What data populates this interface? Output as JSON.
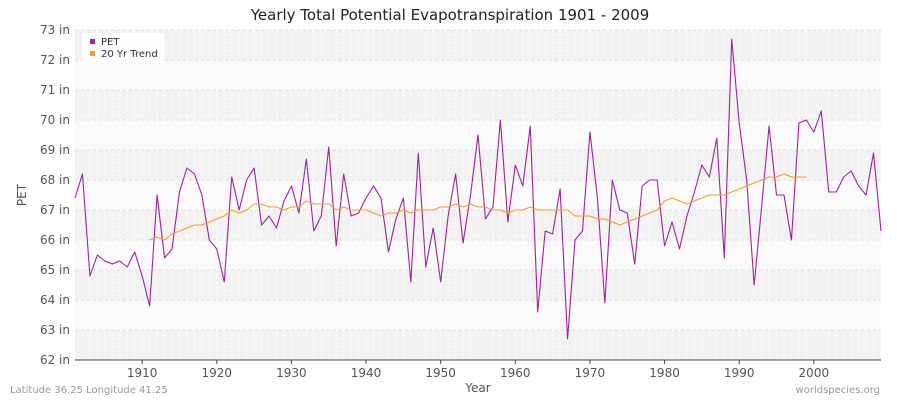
{
  "chart_data": {
    "type": "line",
    "title": "Yearly Total Potential Evapotranspiration 1901 - 2009",
    "xlabel": "Year",
    "ylabel": "PET",
    "xlim": [
      1901,
      2009
    ],
    "ylim": [
      62,
      73
    ],
    "y_ticks": [
      "62 in",
      "63 in",
      "64 in",
      "65 in",
      "66 in",
      "67 in",
      "68 in",
      "69 in",
      "70 in",
      "71 in",
      "72 in",
      "73 in"
    ],
    "x_ticks": [
      "1910",
      "1920",
      "1930",
      "1940",
      "1950",
      "1960",
      "1970",
      "1980",
      "1990",
      "2000"
    ],
    "grid": true,
    "legend_position": "top-left",
    "series": [
      {
        "name": "PET",
        "color": "#a020a0",
        "x": [
          1901,
          1902,
          1903,
          1904,
          1905,
          1906,
          1907,
          1908,
          1909,
          1910,
          1911,
          1912,
          1913,
          1914,
          1915,
          1916,
          1917,
          1918,
          1919,
          1920,
          1921,
          1922,
          1923,
          1924,
          1925,
          1926,
          1927,
          1928,
          1929,
          1930,
          1931,
          1932,
          1933,
          1934,
          1935,
          1936,
          1937,
          1938,
          1939,
          1940,
          1941,
          1942,
          1943,
          1944,
          1945,
          1946,
          1947,
          1948,
          1949,
          1950,
          1951,
          1952,
          1953,
          1954,
          1955,
          1956,
          1957,
          1958,
          1959,
          1960,
          1961,
          1962,
          1963,
          1964,
          1965,
          1966,
          1967,
          1968,
          1969,
          1970,
          1971,
          1972,
          1973,
          1974,
          1975,
          1976,
          1977,
          1978,
          1979,
          1980,
          1981,
          1982,
          1983,
          1984,
          1985,
          1986,
          1987,
          1988,
          1989,
          1990,
          1991,
          1992,
          1993,
          1994,
          1995,
          1996,
          1997,
          1998,
          1999,
          2000,
          2001,
          2002,
          2003,
          2004,
          2005,
          2006,
          2007,
          2008,
          2009
        ],
        "values": [
          67.4,
          68.2,
          64.8,
          65.5,
          65.3,
          65.2,
          65.3,
          65.1,
          65.6,
          64.8,
          63.8,
          67.5,
          65.4,
          65.7,
          67.6,
          68.4,
          68.2,
          67.5,
          66.0,
          65.7,
          64.6,
          68.1,
          67.0,
          68.0,
          68.4,
          66.5,
          66.8,
          66.4,
          67.3,
          67.8,
          66.9,
          68.7,
          66.3,
          66.8,
          69.1,
          65.8,
          68.2,
          66.8,
          66.9,
          67.4,
          67.8,
          67.4,
          65.6,
          66.7,
          67.4,
          64.6,
          68.9,
          65.1,
          66.4,
          64.6,
          66.8,
          68.2,
          65.9,
          67.5,
          69.5,
          66.7,
          67.1,
          70.0,
          66.6,
          68.5,
          67.8,
          69.8,
          63.6,
          66.3,
          66.2,
          67.7,
          62.7,
          66.0,
          66.3,
          69.6,
          67.4,
          63.9,
          68.0,
          67.0,
          66.9,
          65.2,
          67.8,
          68.0,
          68.0,
          65.8,
          66.6,
          65.7,
          66.8,
          67.6,
          68.5,
          68.1,
          69.4,
          65.4,
          72.7,
          69.9,
          68.0,
          64.5,
          67.1,
          69.8,
          67.5,
          67.5,
          66.0,
          69.9,
          70.0,
          69.6,
          70.3,
          67.6,
          67.6,
          68.1,
          68.3,
          67.8,
          67.5,
          68.9,
          66.3
        ]
      },
      {
        "name": "20 Yr Trend",
        "color": "#f0a020",
        "x": [
          1911,
          1912,
          1913,
          1914,
          1915,
          1916,
          1917,
          1918,
          1919,
          1920,
          1921,
          1922,
          1923,
          1924,
          1925,
          1926,
          1927,
          1928,
          1929,
          1930,
          1931,
          1932,
          1933,
          1934,
          1935,
          1936,
          1937,
          1938,
          1939,
          1940,
          1941,
          1942,
          1943,
          1944,
          1945,
          1946,
          1947,
          1948,
          1949,
          1950,
          1951,
          1952,
          1953,
          1954,
          1955,
          1956,
          1957,
          1958,
          1959,
          1960,
          1961,
          1962,
          1963,
          1964,
          1965,
          1966,
          1967,
          1968,
          1969,
          1970,
          1971,
          1972,
          1973,
          1974,
          1975,
          1976,
          1977,
          1978,
          1979,
          1980,
          1981,
          1982,
          1983,
          1984,
          1985,
          1986,
          1987,
          1988,
          1989,
          1990,
          1991,
          1992,
          1993,
          1994,
          1995,
          1996,
          1997,
          1998,
          1999
        ],
        "values": [
          66.0,
          66.1,
          66.0,
          66.2,
          66.3,
          66.4,
          66.5,
          66.5,
          66.6,
          66.7,
          66.8,
          67.0,
          66.9,
          67.0,
          67.2,
          67.2,
          67.1,
          67.1,
          67.0,
          67.1,
          67.1,
          67.3,
          67.2,
          67.2,
          67.2,
          67.0,
          67.1,
          67.0,
          67.0,
          67.0,
          66.9,
          66.8,
          66.9,
          66.9,
          67.0,
          66.9,
          67.0,
          67.0,
          67.0,
          67.1,
          67.1,
          67.2,
          67.1,
          67.2,
          67.1,
          67.1,
          67.0,
          67.0,
          66.9,
          67.0,
          67.0,
          67.1,
          67.0,
          67.0,
          67.0,
          67.0,
          67.0,
          66.8,
          66.8,
          66.8,
          66.7,
          66.7,
          66.6,
          66.5,
          66.6,
          66.7,
          66.8,
          66.9,
          67.0,
          67.3,
          67.4,
          67.3,
          67.2,
          67.3,
          67.4,
          67.5,
          67.5,
          67.5,
          67.6,
          67.7,
          67.8,
          67.9,
          68.0,
          68.1,
          68.1,
          68.2,
          68.1,
          68.1,
          68.1
        ]
      }
    ]
  },
  "footer": {
    "left": "Latitude 36.25 Longitude 41.25",
    "right": "worldspecies.org"
  }
}
